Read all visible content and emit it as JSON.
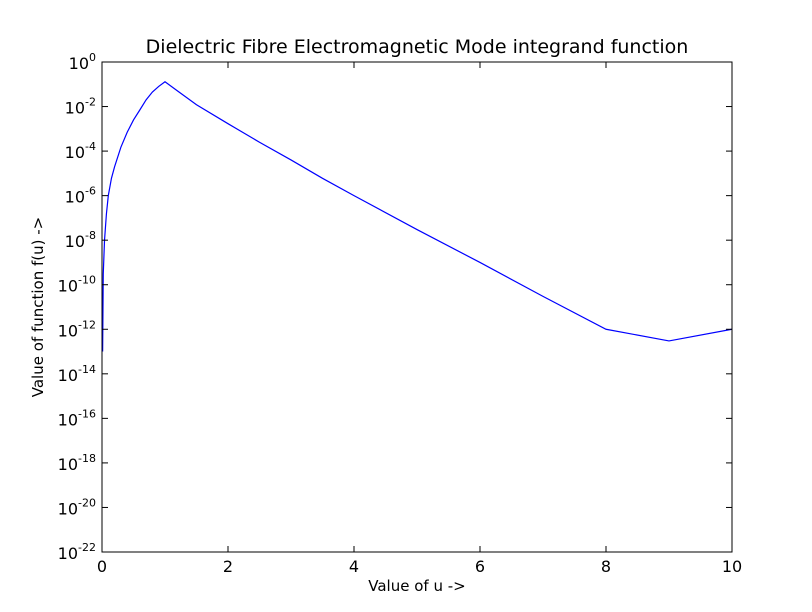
{
  "chart_data": {
    "type": "line",
    "title": "Dielectric Fibre Electromagnetic Mode integrand function",
    "xlabel": "Value of u ->",
    "ylabel": "Value of function f(u) ->",
    "xlim": [
      0,
      10
    ],
    "ylim": [
      1e-22,
      1
    ],
    "yscale": "log",
    "grid": false,
    "x_ticks": [
      0,
      2,
      4,
      6,
      8,
      10
    ],
    "y_ticks": [
      {
        "base": "10",
        "exp": "0"
      },
      {
        "base": "10",
        "exp": "-2"
      },
      {
        "base": "10",
        "exp": "-4"
      },
      {
        "base": "10",
        "exp": "-6"
      },
      {
        "base": "10",
        "exp": "-8"
      },
      {
        "base": "10",
        "exp": "-10"
      },
      {
        "base": "10",
        "exp": "-12"
      },
      {
        "base": "10",
        "exp": "-14"
      },
      {
        "base": "10",
        "exp": "-16"
      },
      {
        "base": "10",
        "exp": "-18"
      },
      {
        "base": "10",
        "exp": "-20"
      },
      {
        "base": "10",
        "exp": "-22"
      }
    ],
    "series": [
      {
        "color": "#0000ff",
        "x": [
          0.01,
          0.02,
          0.04,
          0.07,
          0.1,
          0.15,
          0.2,
          0.3,
          0.4,
          0.5,
          0.6,
          0.7,
          0.8,
          0.9,
          1.0,
          1.2,
          1.5,
          2.0,
          2.5,
          3.0,
          3.5,
          4.0,
          5.0,
          6.0,
          7.0,
          8.0,
          9.0,
          10.0
        ],
        "y": [
          1e-13,
          3e-10,
          1e-08,
          1.5e-07,
          1e-06,
          6e-06,
          2e-05,
          0.00015,
          0.0007,
          0.0025,
          0.007,
          0.02,
          0.045,
          0.08,
          0.13,
          0.05,
          0.012,
          0.0017,
          0.00025,
          4e-05,
          6e-06,
          1e-06,
          3e-08,
          1e-09,
          3e-11,
          1e-12,
          3e-13,
          1e-12
        ]
      }
    ]
  }
}
